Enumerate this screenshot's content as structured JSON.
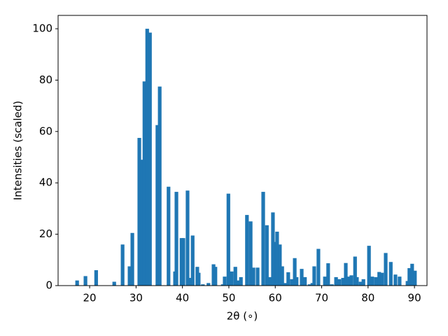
{
  "chart_data": {
    "type": "bar",
    "x_label": "2θ (∘)",
    "y_label": "Intensities (scaled)",
    "color": "#1f77b4",
    "xlim": [
      13.2,
      92.7
    ],
    "ylim": [
      0,
      105.2
    ],
    "xticks": [
      20,
      30,
      40,
      50,
      60,
      70,
      80,
      90
    ],
    "yticks": [
      0,
      20,
      40,
      60,
      80,
      100
    ],
    "x": [
      17.3,
      19.1,
      21.4,
      25.3,
      27.1,
      28.6,
      29.2,
      30.7,
      31.3,
      31.8,
      32.4,
      33.0,
      34.6,
      35.1,
      37.0,
      38.4,
      38.7,
      39.8,
      40.2,
      41.1,
      41.7,
      42.2,
      43.2,
      43.5,
      44.4,
      45.6,
      46.7,
      47.1,
      48.7,
      49.1,
      49.9,
      50.6,
      51.4,
      52.0,
      52.6,
      53.9,
      54.7,
      55.3,
      56.2,
      57.4,
      58.2,
      58.9,
      59.5,
      60.1,
      60.4,
      61.0,
      61.5,
      62.2,
      62.8,
      63.6,
      64.2,
      64.6,
      65.7,
      66.4,
      67.4,
      68.0,
      68.4,
      69.3,
      70.7,
      71.4,
      72.2,
      73.1,
      73.8,
      74.6,
      75.2,
      75.8,
      76.4,
      77.2,
      77.6,
      78.4,
      79.0,
      80.2,
      80.9,
      81.7,
      82.4,
      83.0,
      83.8,
      84.9,
      85.9,
      86.8,
      88.5,
      88.9,
      89.5,
      90.1
    ],
    "values": [
      2,
      3.7,
      6,
      1.5,
      16,
      7.5,
      20.5,
      57.5,
      49,
      79.5,
      100,
      98.5,
      62.5,
      77.5,
      38.5,
      5.5,
      36.5,
      18.5,
      18.5,
      37,
      3,
      19.5,
      7.3,
      5,
      0.5,
      1,
      8.3,
      7.3,
      0.5,
      3.5,
      35.8,
      5.5,
      7.3,
      2,
      3.3,
      27.5,
      25,
      7,
      7,
      36.5,
      23.5,
      3.3,
      28.5,
      17,
      21,
      16,
      7.5,
      1,
      5.2,
      2.5,
      10.7,
      3.3,
      6.5,
      3.3,
      0.5,
      1,
      7.5,
      14.3,
      3.5,
      8.7,
      0.5,
      3.3,
      2.5,
      3,
      8.8,
      3.5,
      4,
      11.3,
      3.3,
      1.5,
      2.5,
      15.5,
      3.5,
      3.3,
      5.3,
      5,
      12.7,
      9.2,
      4.3,
      3.5,
      1.8,
      6.8,
      8.5,
      5.8
    ]
  }
}
